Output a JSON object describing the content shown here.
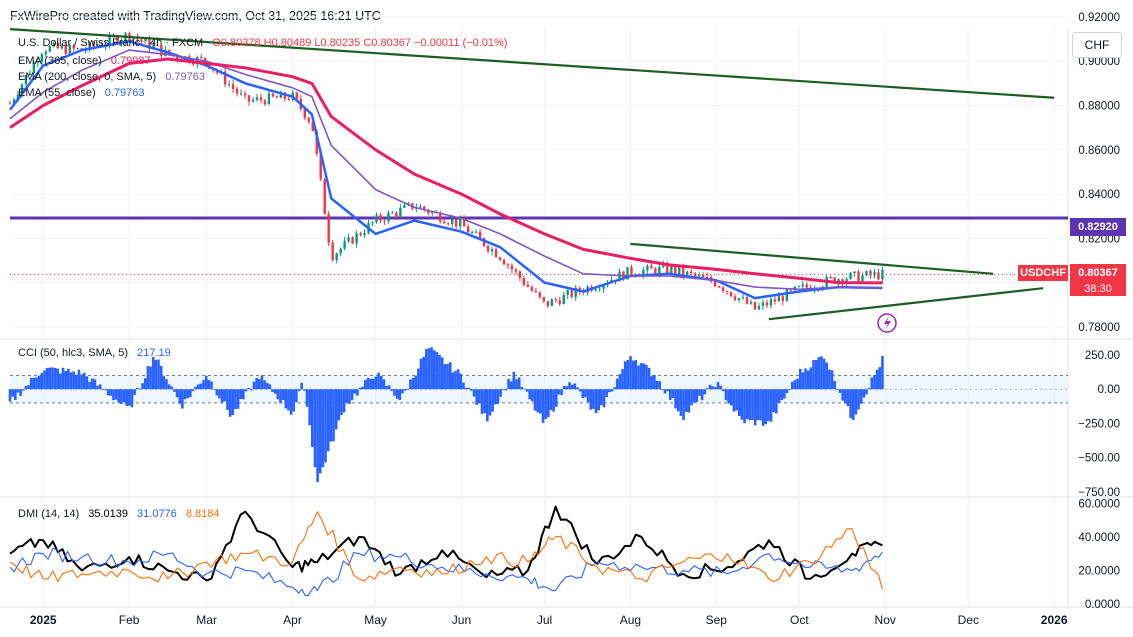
{
  "header": {
    "attribution": "FxWirePro created with TradingView.com, Oct 31, 2025 16:21 UTC"
  },
  "main_legend": {
    "title": "U.S. Dollar / Swiss Franc · 4h · FXCM",
    "ohlc": "O0.80378  H0.80489  L0.80235  C0.80367  −0.00011 (−0.01%)",
    "ema365_label": "EMA (365, close)",
    "ema365_value": "0.79987",
    "ema200_label": "EMA (200, close, 0, SMA, 5)",
    "ema200_value": "0.79763",
    "ema55_label": "EMA (55, close)",
    "ema55_value": "0.79763"
  },
  "cci_legend": {
    "label": "CCI (50, hlc3, SMA, 5)",
    "value": "217.19"
  },
  "dmi_legend": {
    "label": "DMI (14, 14)",
    "adx": "35.0139",
    "plus_di": "31.0776",
    "minus_di": "8.8184"
  },
  "currency_button": "CHF",
  "price_tags": {
    "level": "0.82920",
    "symbol": "USDCHF",
    "last": "0.80367",
    "countdown": "38:30"
  },
  "colors": {
    "price_candles": "#089981",
    "ema365": "#e91e63",
    "ema200": "#7e57c2",
    "ema55": "#2962ff",
    "trendline": "#1b5e20",
    "level": "#5e35b1",
    "cci": "#2962ff",
    "adx": "#000000",
    "plus_di": "#2962ff",
    "minus_di": "#ff6d00",
    "symbol_tag": "#f23645",
    "level_tag": "#5e35b1"
  },
  "chart_data": [
    {
      "type": "line",
      "pane": "price",
      "x_labels": [
        "2025",
        "Feb",
        "Mar",
        "Apr",
        "May",
        "Jun",
        "Jul",
        "Aug",
        "Sep",
        "Oct",
        "Nov",
        "Dec",
        "2026"
      ],
      "y_ticks": [
        "0.92000",
        "0.90000",
        "0.88000",
        "0.86000",
        "0.84000",
        "0.82000",
        "0.80000",
        "0.78000"
      ],
      "ylim": [
        0.775,
        0.915
      ],
      "x": [
        "2024-12-20",
        "2025-01-01",
        "2025-01-15",
        "2025-02-01",
        "2025-02-15",
        "2025-03-01",
        "2025-03-15",
        "2025-04-01",
        "2025-04-08",
        "2025-04-15",
        "2025-05-01",
        "2025-05-15",
        "2025-06-01",
        "2025-06-15",
        "2025-07-01",
        "2025-07-15",
        "2025-08-01",
        "2025-08-15",
        "2025-09-01",
        "2025-09-15",
        "2025-10-01",
        "2025-10-15",
        "2025-10-31"
      ],
      "series": [
        {
          "name": "USDCHF",
          "values": [
            0.881,
            0.906,
            0.905,
            0.912,
            0.903,
            0.9,
            0.882,
            0.884,
            0.872,
            0.812,
            0.828,
            0.835,
            0.826,
            0.812,
            0.79,
            0.797,
            0.805,
            0.806,
            0.8,
            0.788,
            0.797,
            0.802,
            0.8037
          ]
        },
        {
          "name": "EMA (55, close)",
          "values": [
            0.878,
            0.898,
            0.905,
            0.909,
            0.904,
            0.898,
            0.89,
            0.884,
            0.876,
            0.838,
            0.822,
            0.828,
            0.823,
            0.816,
            0.8,
            0.796,
            0.803,
            0.804,
            0.801,
            0.793,
            0.796,
            0.798,
            0.7976
          ]
        },
        {
          "name": "EMA (200, close, 0, SMA, 5)",
          "values": [
            0.874,
            0.886,
            0.896,
            0.905,
            0.903,
            0.9,
            0.894,
            0.888,
            0.884,
            0.862,
            0.842,
            0.834,
            0.829,
            0.822,
            0.812,
            0.804,
            0.803,
            0.803,
            0.801,
            0.798,
            0.797,
            0.798,
            0.7976
          ]
        },
        {
          "name": "EMA (365, close)",
          "values": [
            0.87,
            0.88,
            0.889,
            0.899,
            0.901,
            0.899,
            0.897,
            0.893,
            0.89,
            0.875,
            0.86,
            0.849,
            0.84,
            0.831,
            0.822,
            0.815,
            0.811,
            0.808,
            0.806,
            0.804,
            0.802,
            0.8,
            0.7999
          ]
        }
      ],
      "horizontal_level": 0.8292,
      "trendlines": [
        {
          "from": [
            "2024-12-20",
            0.9145
          ],
          "to": [
            "2026-01-01",
            0.8835
          ]
        },
        {
          "from": [
            "2025-08-01",
            0.8175
          ],
          "to": [
            "2025-12-10",
            0.804
          ]
        },
        {
          "from": [
            "2025-09-20",
            0.7835
          ],
          "to": [
            "2025-12-28",
            0.7975
          ]
        }
      ]
    },
    {
      "type": "bar",
      "pane": "CCI",
      "y_ticks": [
        "250.00",
        "0.00",
        "−250.00",
        "−500.00",
        "−750.00"
      ],
      "ylim": [
        -750,
        330
      ],
      "bands": [
        100,
        -100
      ],
      "x": [
        "2024-12-20",
        "2025-01-01",
        "2025-01-15",
        "2025-02-01",
        "2025-02-10",
        "2025-02-20",
        "2025-03-01",
        "2025-03-10",
        "2025-03-20",
        "2025-04-01",
        "2025-04-05",
        "2025-04-10",
        "2025-04-20",
        "2025-05-01",
        "2025-05-10",
        "2025-05-20",
        "2025-06-01",
        "2025-06-10",
        "2025-06-20",
        "2025-07-01",
        "2025-07-10",
        "2025-07-20",
        "2025-08-01",
        "2025-08-10",
        "2025-08-20",
        "2025-09-01",
        "2025-09-10",
        "2025-09-20",
        "2025-10-01",
        "2025-10-10",
        "2025-10-20",
        "2025-10-31"
      ],
      "values": [
        -100,
        150,
        120,
        -150,
        250,
        -120,
        110,
        -200,
        100,
        -180,
        60,
        -680,
        -120,
        120,
        -80,
        300,
        100,
        -220,
        120,
        -260,
        80,
        -200,
        250,
        100,
        -200,
        50,
        -230,
        -250,
        120,
        250,
        -220,
        217
      ]
    },
    {
      "type": "line",
      "pane": "DMI",
      "y_ticks": [
        "60.0000",
        "40.0000",
        "20.0000",
        "0.0000"
      ],
      "ylim": [
        0,
        62
      ],
      "x": [
        "2024-12-20",
        "2025-01-01",
        "2025-01-15",
        "2025-02-01",
        "2025-02-15",
        "2025-03-01",
        "2025-03-15",
        "2025-04-01",
        "2025-04-10",
        "2025-04-25",
        "2025-05-10",
        "2025-05-25",
        "2025-06-10",
        "2025-06-25",
        "2025-07-05",
        "2025-07-20",
        "2025-08-05",
        "2025-08-20",
        "2025-09-05",
        "2025-09-20",
        "2025-10-05",
        "2025-10-20",
        "2025-10-31"
      ],
      "series": [
        {
          "name": "ADX",
          "values": [
            30,
            38,
            20,
            28,
            20,
            14,
            55,
            22,
            25,
            40,
            18,
            32,
            16,
            20,
            58,
            24,
            40,
            18,
            22,
            38,
            15,
            30,
            35.01
          ]
        },
        {
          "name": "+DI",
          "values": [
            22,
            30,
            28,
            25,
            30,
            18,
            20,
            10,
            8,
            30,
            28,
            22,
            18,
            15,
            8,
            25,
            22,
            20,
            18,
            30,
            22,
            20,
            31.08
          ]
        },
        {
          "name": "−DI",
          "values": [
            25,
            15,
            18,
            20,
            15,
            25,
            30,
            25,
            55,
            15,
            22,
            18,
            28,
            25,
            40,
            22,
            15,
            25,
            30,
            15,
            25,
            45,
            8.82
          ]
        }
      ]
    }
  ]
}
